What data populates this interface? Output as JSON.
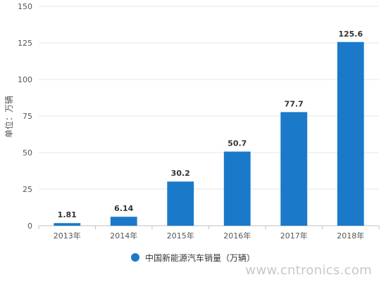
{
  "chart_data": {
    "type": "bar",
    "categories": [
      "2013年",
      "2014年",
      "2015年",
      "2016年",
      "2017年",
      "2018年"
    ],
    "values": [
      1.81,
      6.14,
      30.2,
      50.7,
      77.7,
      125.6
    ],
    "data_labels": [
      "1.81",
      "6.14",
      "30.2",
      "50.7",
      "77.7",
      "125.6"
    ],
    "series": [
      {
        "name": "中国新能源汽车销量（万辆）",
        "values": [
          1.81,
          6.14,
          30.2,
          50.7,
          77.7,
          125.6
        ]
      }
    ],
    "ylabel": "单位：万辆",
    "ylim": [
      0,
      150
    ],
    "yticks": [
      0,
      25,
      50,
      75,
      100,
      125,
      150
    ],
    "grid": true,
    "legend_position": "bottom",
    "colors": {
      "bar": "#1a7ac9",
      "grid": "#e6e6e6",
      "axis": "#c0c0c0",
      "text": "#333333"
    }
  },
  "watermark": "www.cntronics.com"
}
